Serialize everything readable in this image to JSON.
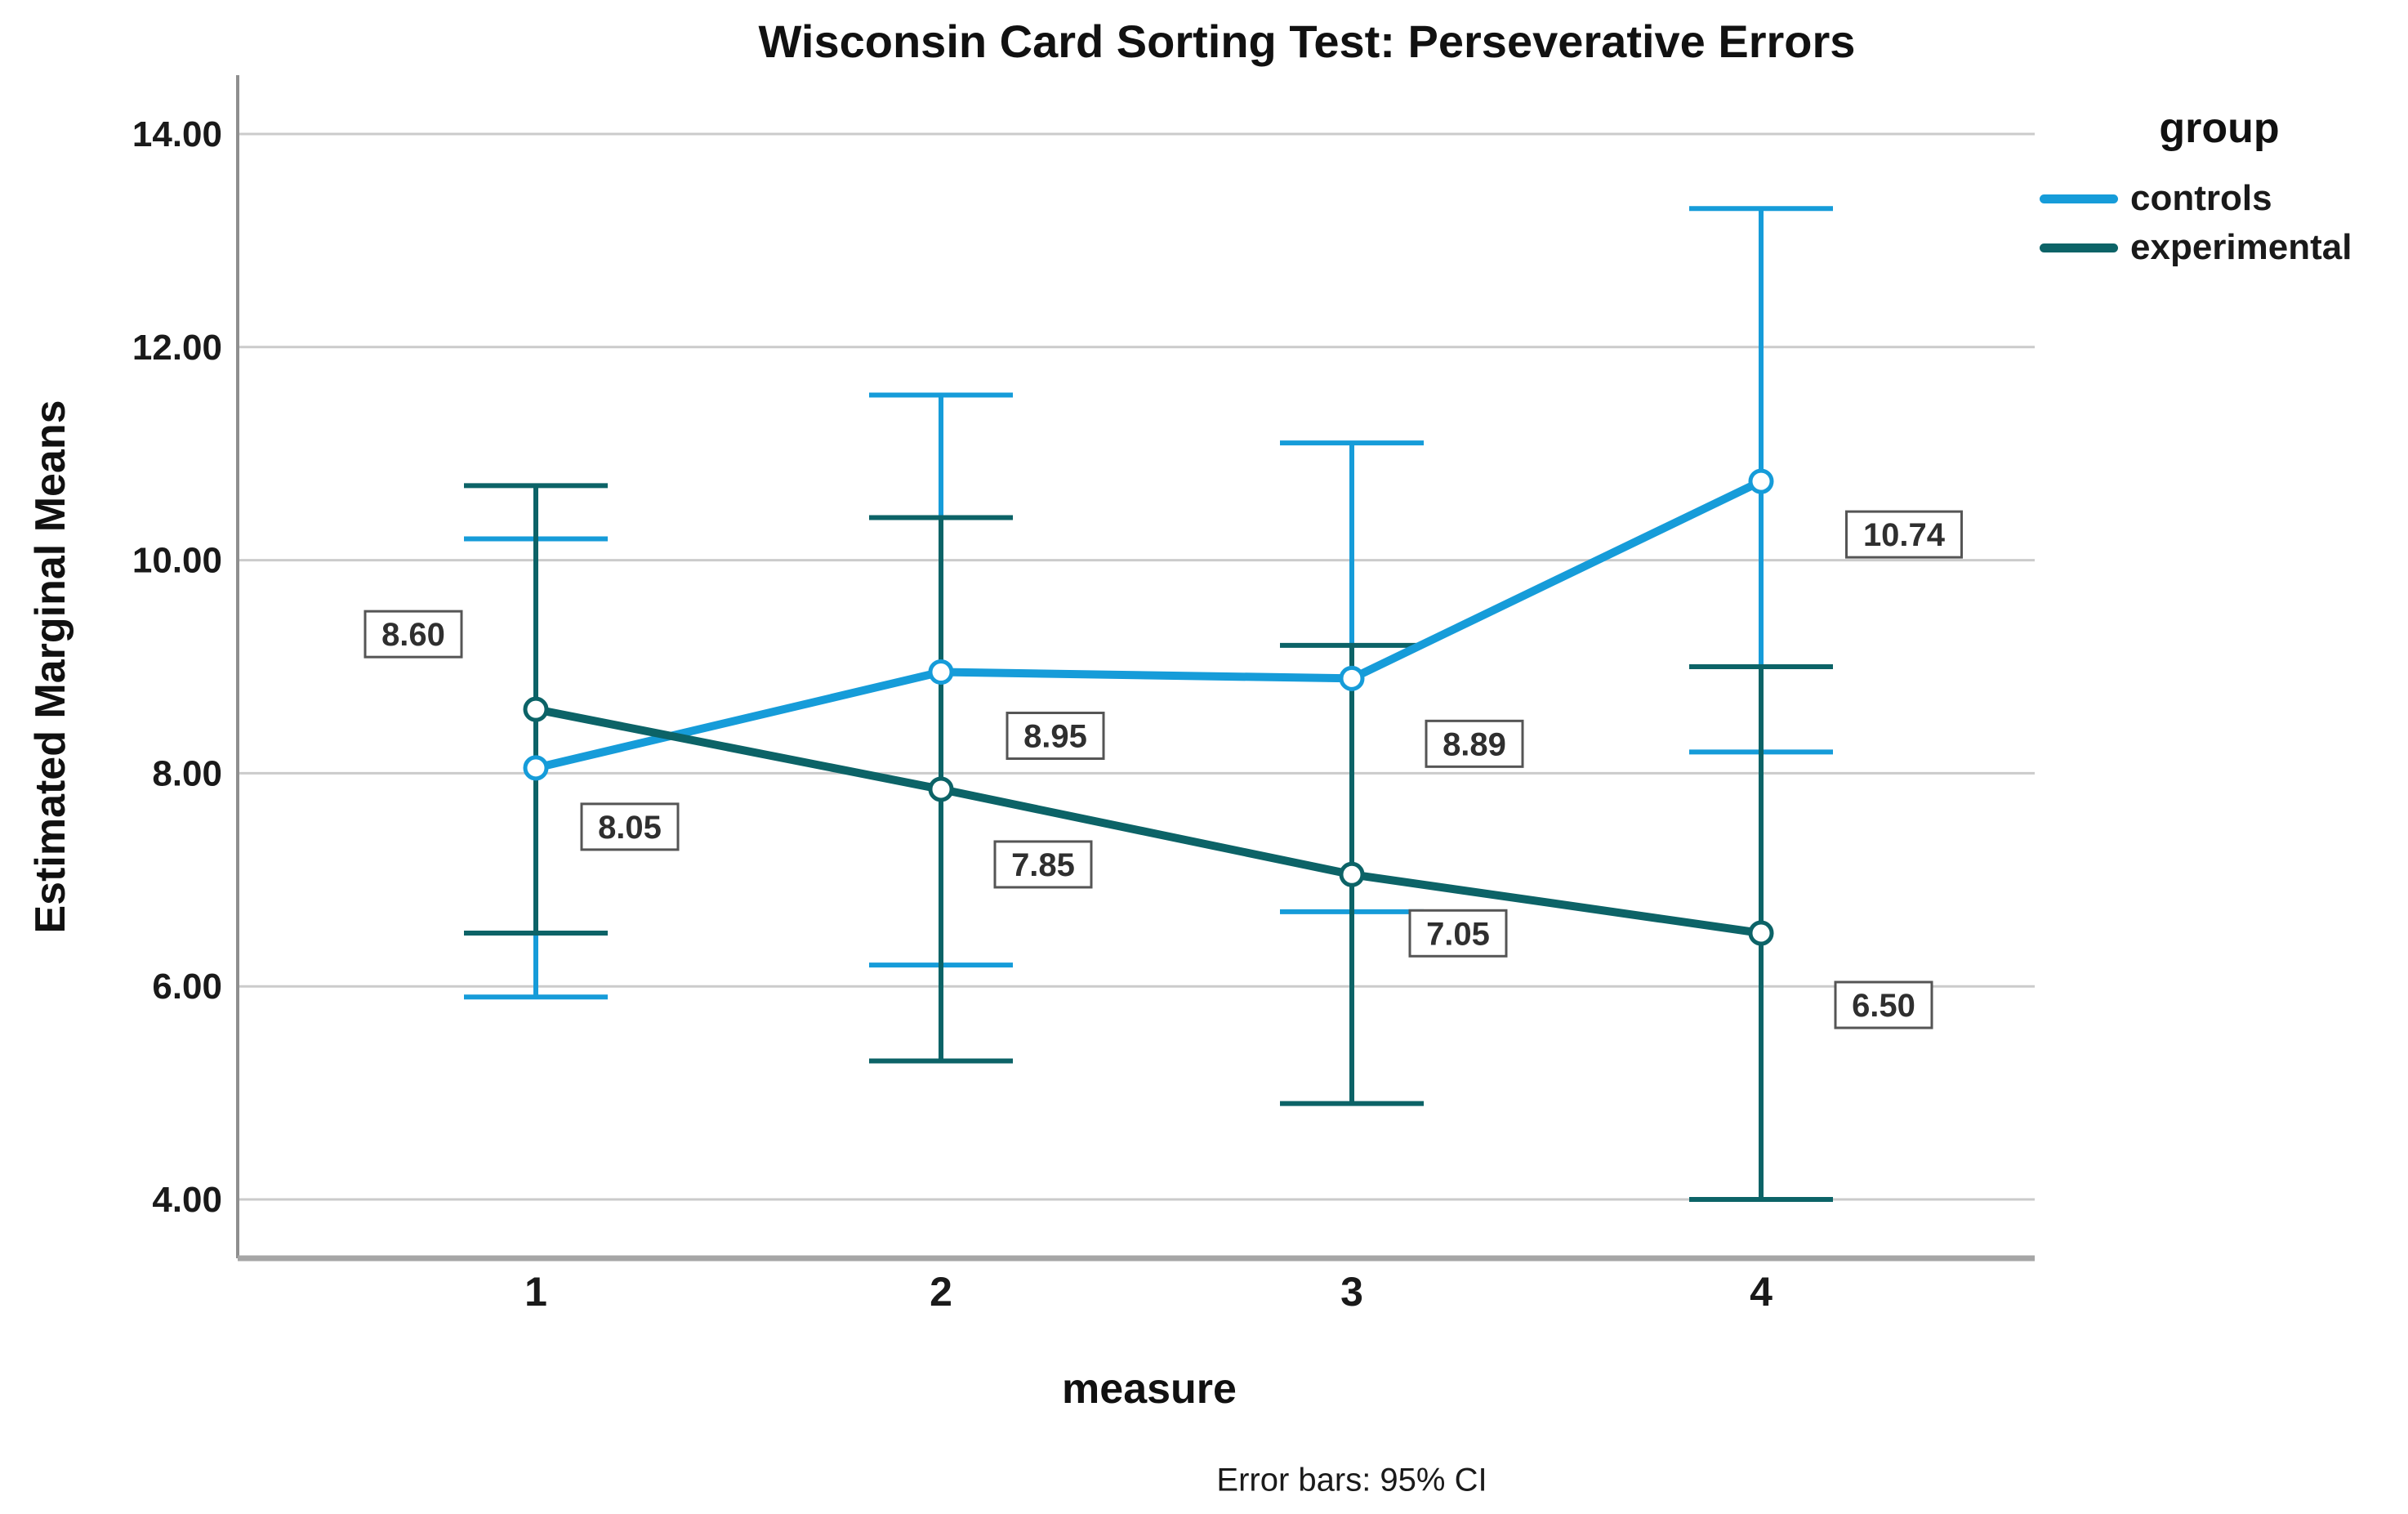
{
  "chart_data": {
    "type": "line",
    "title": "Wisconsin Card Sorting Test: Perseverative Errors",
    "xlabel": "measure",
    "ylabel": "Estimated Marginal Means",
    "footnote": "Error bars: 95% CI",
    "x_categories": [
      "1",
      "2",
      "3",
      "4"
    ],
    "y_ticks": [
      {
        "value": 4,
        "label": "4.00"
      },
      {
        "value": 6,
        "label": "6.00"
      },
      {
        "value": 8,
        "label": "8.00"
      },
      {
        "value": 10,
        "label": "10.00"
      },
      {
        "value": 12,
        "label": "12.00"
      },
      {
        "value": 14,
        "label": "14.00"
      }
    ],
    "ylim": [
      3.4,
      14.6
    ],
    "grid": "horizontal-only",
    "error_bars": "95% CI",
    "marker": "open-circle",
    "legend": {
      "title": "group",
      "position": "top-right-outside"
    },
    "series": [
      {
        "name": "controls",
        "color": "#169CD9",
        "values": [
          8.05,
          8.95,
          8.89,
          10.74
        ],
        "point_labels": [
          "8.05",
          "8.95",
          "8.89",
          "10.74"
        ],
        "ci_low": [
          5.9,
          6.2,
          6.7,
          8.2
        ],
        "ci_high": [
          10.2,
          11.55,
          11.1,
          13.3
        ]
      },
      {
        "name": "experimental",
        "color": "#0C6367",
        "values": [
          8.6,
          7.85,
          7.05,
          6.5
        ],
        "point_labels": [
          "8.60",
          "7.85",
          "7.05",
          "6.50"
        ],
        "ci_low": [
          6.5,
          5.3,
          4.9,
          4.0
        ],
        "ci_high": [
          10.7,
          10.4,
          9.2,
          9.0
        ]
      }
    ],
    "colors": {
      "grid": "#CBCBCB",
      "axis_left": "#8F8F8F",
      "axis_bottom": "#A6A6A6",
      "tick_text": "#1a1a1a",
      "label_box_border": "#555555",
      "label_box_fill": "#ffffff",
      "label_box_text": "#2f2f2f"
    }
  }
}
